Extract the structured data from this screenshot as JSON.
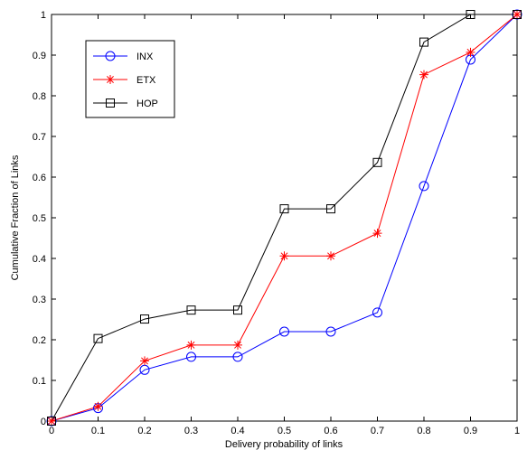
{
  "chart_data": {
    "type": "line",
    "title": "",
    "xlabel": "Delivery probability of links",
    "ylabel": "Cumulative Fraction of Links",
    "xlim": [
      0,
      1
    ],
    "ylim": [
      0,
      1
    ],
    "x": [
      0,
      0.1,
      0.2,
      0.3,
      0.4,
      0.5,
      0.6,
      0.7,
      0.8,
      0.9,
      1
    ],
    "x_ticks": [
      "0",
      "0.1",
      "0.2",
      "0.3",
      "0.4",
      "0.5",
      "0.6",
      "0.7",
      "0.8",
      "0.9",
      "1"
    ],
    "y_ticks": [
      "0",
      "0.1",
      "0.2",
      "0.3",
      "0.4",
      "0.5",
      "0.6",
      "0.7",
      "0.8",
      "0.9",
      "1"
    ],
    "grid": false,
    "legend_position": "top-left",
    "series": [
      {
        "name": "INX",
        "color": "#0000ff",
        "marker": "circle",
        "values": [
          0,
          0.032,
          0.126,
          0.158,
          0.158,
          0.22,
          0.22,
          0.267,
          0.578,
          0.889,
          1.0
        ]
      },
      {
        "name": "ETX",
        "color": "#ff0000",
        "marker": "star",
        "values": [
          0,
          0.036,
          0.148,
          0.187,
          0.187,
          0.406,
          0.406,
          0.462,
          0.852,
          0.907,
          1.0
        ]
      },
      {
        "name": "HOP",
        "color": "#000000",
        "marker": "square",
        "values": [
          0,
          0.203,
          0.251,
          0.273,
          0.273,
          0.522,
          0.522,
          0.636,
          0.932,
          1.0,
          1.0
        ]
      }
    ]
  }
}
